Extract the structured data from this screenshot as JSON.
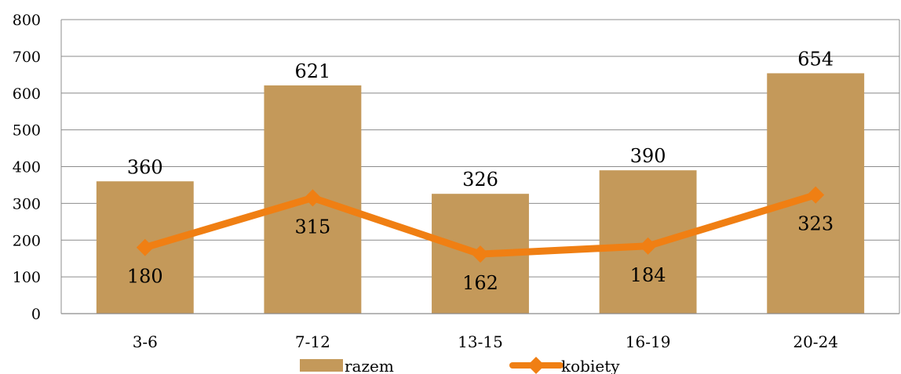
{
  "chart_data": {
    "type": "bar",
    "categories": [
      "3-6",
      "7-12",
      "13-15",
      "16-19",
      "20-24"
    ],
    "series": [
      {
        "name": "razem",
        "type": "bar",
        "values": [
          360,
          621,
          326,
          390,
          654
        ]
      },
      {
        "name": "kobiety",
        "type": "line",
        "marker": "diamond",
        "values": [
          180,
          315,
          162,
          184,
          323
        ]
      }
    ],
    "ylim": [
      0,
      800
    ],
    "yticks": [
      0,
      100,
      200,
      300,
      400,
      500,
      600,
      700,
      800
    ],
    "grid": true,
    "legend_position": "bottom",
    "data_labels": true,
    "colors": {
      "bar": "#C4995A",
      "line": "#F07F13",
      "grid": "#8C8C8C"
    }
  }
}
